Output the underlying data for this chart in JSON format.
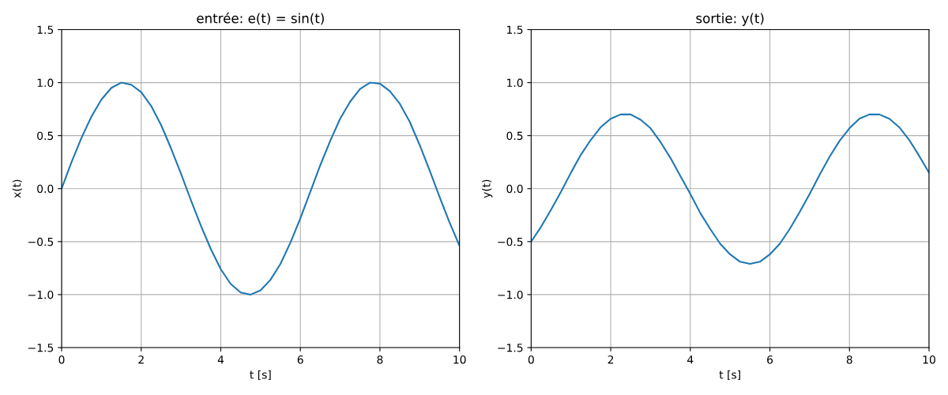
{
  "chart_data": [
    {
      "type": "line",
      "title": "entrée: e(t) = sin(t)",
      "xlabel": "t [s]",
      "ylabel": "x(t)",
      "x": [
        0,
        0.25,
        0.5,
        0.75,
        1,
        1.25,
        1.5,
        1.75,
        2,
        2.25,
        2.5,
        2.75,
        3,
        3.25,
        3.5,
        3.75,
        4,
        4.25,
        4.5,
        4.75,
        5,
        5.25,
        5.5,
        5.75,
        6,
        6.25,
        6.5,
        6.75,
        7,
        7.25,
        7.5,
        7.75,
        8,
        8.25,
        8.5,
        8.75,
        9,
        9.25,
        9.5,
        9.75,
        10
      ],
      "series": [
        {
          "color": "#1f77b4",
          "values": [
            0,
            0.25,
            0.48,
            0.68,
            0.84,
            0.95,
            1.0,
            0.98,
            0.91,
            0.78,
            0.6,
            0.38,
            0.14,
            -0.11,
            -0.35,
            -0.57,
            -0.76,
            -0.9,
            -0.98,
            -1.0,
            -0.96,
            -0.86,
            -0.71,
            -0.51,
            -0.28,
            -0.03,
            0.22,
            0.45,
            0.66,
            0.82,
            0.94,
            1.0,
            0.99,
            0.92,
            0.8,
            0.63,
            0.41,
            0.17,
            -0.08,
            -0.32,
            -0.54
          ]
        }
      ],
      "xlim": [
        0,
        10
      ],
      "xticks": [
        0,
        2,
        4,
        6,
        8,
        10
      ],
      "ylim": [
        -1.5,
        1.5
      ],
      "yticks": [
        {
          "value": -1.5,
          "label": "−1.5"
        },
        {
          "value": -1,
          "label": "−1.0"
        },
        {
          "value": -0.5,
          "label": "−0.5"
        },
        {
          "value": 0,
          "label": "0.0"
        },
        {
          "value": 0.5,
          "label": "0.5"
        },
        {
          "value": 1,
          "label": "1.0"
        },
        {
          "value": 1.5,
          "label": "1.5"
        }
      ],
      "grid": true
    },
    {
      "type": "line",
      "title": "sortie: y(t)",
      "xlabel": "t [s]",
      "ylabel": "y(t)",
      "x": [
        0,
        0.25,
        0.5,
        0.75,
        1,
        1.25,
        1.5,
        1.75,
        2,
        2.25,
        2.5,
        2.75,
        3,
        3.25,
        3.5,
        3.75,
        4,
        4.25,
        4.5,
        4.75,
        5,
        5.25,
        5.5,
        5.75,
        6,
        6.25,
        6.5,
        6.75,
        7,
        7.25,
        7.5,
        7.75,
        8,
        8.25,
        8.5,
        8.75,
        9,
        9.25,
        9.5,
        9.75,
        10
      ],
      "series": [
        {
          "color": "#1f77b4",
          "values": [
            -0.5,
            -0.36,
            -0.2,
            -0.03,
            0.15,
            0.32,
            0.46,
            0.58,
            0.66,
            0.7,
            0.7,
            0.65,
            0.57,
            0.44,
            0.29,
            0.12,
            -0.05,
            -0.23,
            -0.38,
            -0.52,
            -0.62,
            -0.69,
            -0.71,
            -0.69,
            -0.62,
            -0.52,
            -0.38,
            -0.22,
            -0.05,
            0.13,
            0.3,
            0.45,
            0.57,
            0.66,
            0.7,
            0.7,
            0.66,
            0.58,
            0.46,
            0.31,
            0.15
          ]
        }
      ],
      "xlim": [
        0,
        10
      ],
      "xticks": [
        0,
        2,
        4,
        6,
        8,
        10
      ],
      "ylim": [
        -1.5,
        1.5
      ],
      "yticks": [
        {
          "value": -1.5,
          "label": "−1.5"
        },
        {
          "value": -1,
          "label": "−1.0"
        },
        {
          "value": -0.5,
          "label": "−0.5"
        },
        {
          "value": 0,
          "label": "0.0"
        },
        {
          "value": 0.5,
          "label": "0.5"
        },
        {
          "value": 1,
          "label": "1.0"
        },
        {
          "value": 1.5,
          "label": "1.5"
        }
      ],
      "grid": true
    }
  ]
}
